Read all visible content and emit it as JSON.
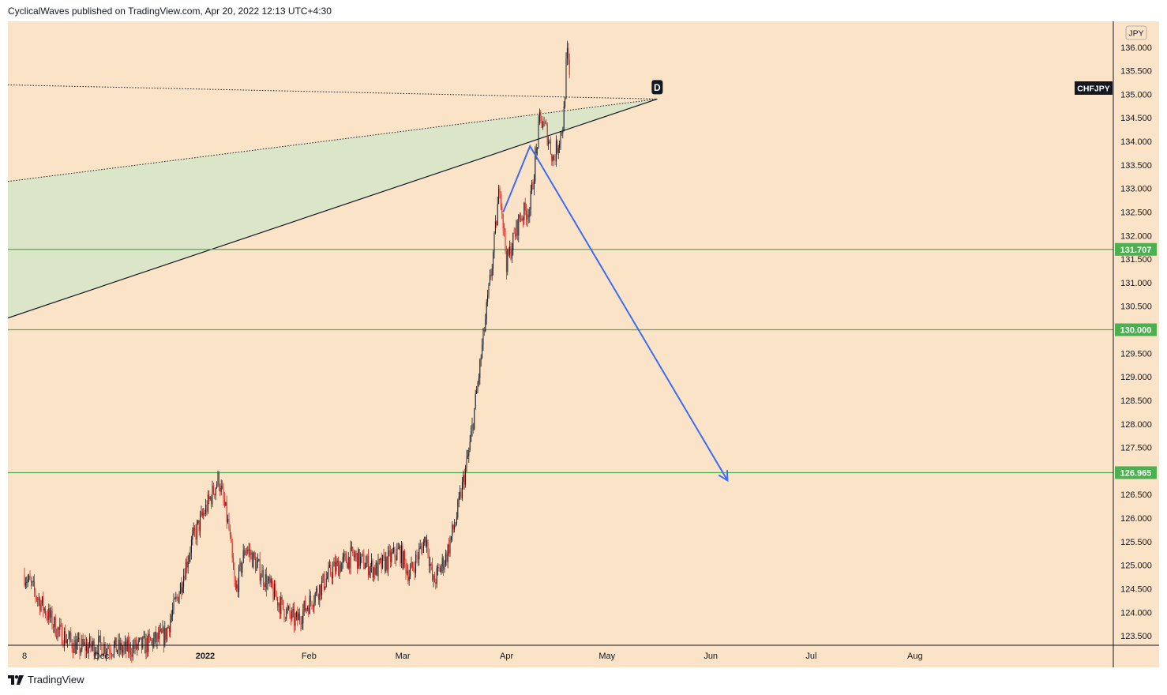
{
  "header": {
    "published_line": "CyclicalWaves published on TradingView.com, Apr 20, 2022 12:13 UTC+4:30"
  },
  "footer": {
    "brand": "TradingView",
    "logo_icon": "tradingview-logo-icon"
  },
  "colors": {
    "background": "#fbe3c7",
    "bull_candle": "#131722",
    "bear_candle": "#d81e1e",
    "level_line": "#4caf50",
    "projection_arrow": "#3d6cf0",
    "wedge_fill": "#dbe6c9"
  },
  "chart_data": {
    "type": "candlestick",
    "symbol": "CHFJPY",
    "currency": "JPY",
    "x_ticks": [
      "8",
      "Dec",
      "2022",
      "Feb",
      "Mar",
      "Apr",
      "May",
      "Jun",
      "Jul",
      "Aug"
    ],
    "y_ticks": [
      "123.500",
      "124.000",
      "124.500",
      "125.000",
      "125.500",
      "126.000",
      "126.500",
      "127.000",
      "127.500",
      "128.000",
      "128.500",
      "129.000",
      "129.500",
      "130.000",
      "130.500",
      "131.000",
      "131.500",
      "132.000",
      "132.500",
      "133.000",
      "133.500",
      "134.000",
      "134.500",
      "135.000",
      "135.500",
      "136.000"
    ],
    "ylim": [
      123.3,
      136.55
    ],
    "price_path": [
      [
        "2021-11-08",
        124.8
      ],
      [
        "2021-11-12",
        124.3
      ],
      [
        "2021-11-18",
        123.6
      ],
      [
        "2021-11-24",
        123.25
      ],
      [
        "2021-12-01",
        123.3
      ],
      [
        "2021-12-08",
        123.2
      ],
      [
        "2021-12-14",
        123.3
      ],
      [
        "2021-12-20",
        123.5
      ],
      [
        "2021-12-24",
        124.4
      ],
      [
        "2021-12-28",
        125.5
      ],
      [
        "2022-01-03",
        126.5
      ],
      [
        "2022-01-05",
        126.85
      ],
      [
        "2022-01-08",
        125.8
      ],
      [
        "2022-01-10",
        124.4
      ],
      [
        "2022-01-13",
        125.4
      ],
      [
        "2022-01-18",
        124.8
      ],
      [
        "2022-01-24",
        124.1
      ],
      [
        "2022-01-28",
        123.8
      ],
      [
        "2022-02-02",
        124.3
      ],
      [
        "2022-02-08",
        124.9
      ],
      [
        "2022-02-14",
        125.2
      ],
      [
        "2022-02-21",
        124.9
      ],
      [
        "2022-02-28",
        125.3
      ],
      [
        "2022-03-03",
        124.8
      ],
      [
        "2022-03-08",
        125.6
      ],
      [
        "2022-03-10",
        124.6
      ],
      [
        "2022-03-14",
        125.2
      ],
      [
        "2022-03-17",
        126.0
      ],
      [
        "2022-03-21",
        127.5
      ],
      [
        "2022-03-24",
        129.2
      ],
      [
        "2022-03-28",
        131.6
      ],
      [
        "2022-03-30",
        133.1
      ],
      [
        "2022-04-01",
        131.4
      ],
      [
        "2022-04-05",
        132.4
      ],
      [
        "2022-04-08",
        132.6
      ],
      [
        "2022-04-11",
        134.5
      ],
      [
        "2022-04-13",
        134.2
      ],
      [
        "2022-04-15",
        133.6
      ],
      [
        "2022-04-18",
        134.4
      ],
      [
        "2022-04-19",
        135.9
      ],
      [
        "2022-04-20",
        135.2
      ]
    ],
    "levels": [
      {
        "price": 131.707,
        "label": "131.707"
      },
      {
        "price": 130.0,
        "label": "130.000"
      },
      {
        "price": 126.965,
        "label": "126.965"
      }
    ],
    "annotations": {
      "wedge_point_label": "D",
      "wedge_apex": [
        "2022-05-16",
        134.9
      ],
      "upper_dotted_line": [
        [
          "2021-11-01",
          135.2
        ],
        [
          "2022-05-16",
          134.9
        ]
      ],
      "lower_dotted_line": [
        [
          "2021-11-01",
          133.15
        ],
        [
          "2022-05-16",
          134.9
        ]
      ],
      "lower_solid_line": [
        [
          "2021-11-01",
          130.25
        ],
        [
          "2022-05-16",
          134.9
        ]
      ],
      "projection": [
        [
          "2022-03-31",
          132.5
        ],
        [
          "2022-04-08",
          133.9
        ],
        [
          "2022-06-06",
          126.8
        ]
      ]
    },
    "title": "",
    "xlabel": "",
    "ylabel": "",
    "grid": false,
    "legend": "none"
  }
}
